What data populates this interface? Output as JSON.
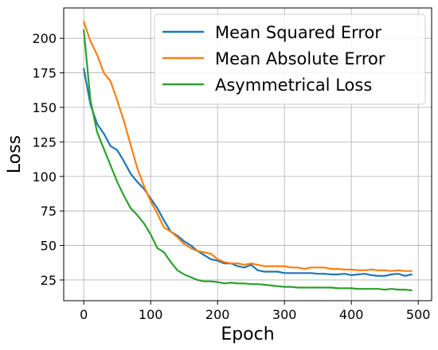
{
  "chart_data": {
    "type": "line",
    "title": "",
    "xlabel": "Epoch",
    "ylabel": "Loss",
    "xlim": [
      -30,
      520
    ],
    "ylim": [
      10,
      222
    ],
    "xticks": [
      0,
      100,
      200,
      300,
      400,
      500
    ],
    "yticks": [
      25,
      50,
      75,
      100,
      125,
      150,
      175,
      200
    ],
    "grid": true,
    "legend_position": "top-right",
    "x": [
      0,
      10,
      20,
      30,
      40,
      50,
      60,
      70,
      80,
      90,
      100,
      110,
      120,
      130,
      140,
      150,
      160,
      170,
      180,
      190,
      200,
      210,
      220,
      230,
      240,
      250,
      260,
      270,
      280,
      290,
      300,
      310,
      320,
      330,
      340,
      350,
      360,
      370,
      380,
      390,
      400,
      410,
      420,
      430,
      440,
      450,
      460,
      470,
      480,
      490
    ],
    "series": [
      {
        "name": "Mean Squared Error",
        "color": "#1f77b4",
        "values": [
          178,
          152,
          138,
          131,
          122,
          119,
          111,
          102,
          96,
          91,
          84,
          77,
          68,
          60,
          57,
          53,
          50,
          46,
          43,
          40,
          39,
          37,
          37,
          35,
          34,
          36,
          32,
          31,
          31,
          31,
          30,
          30,
          30,
          30,
          30,
          29.5,
          29.5,
          29,
          29,
          29.5,
          28.5,
          29,
          29.5,
          28.5,
          28,
          28,
          29,
          29.5,
          28,
          29
        ]
      },
      {
        "name": "Mean Absolute Error",
        "color": "#ff7f0e",
        "values": [
          212,
          198,
          188,
          175,
          169,
          155,
          140,
          123,
          106,
          93,
          82,
          73,
          63,
          60,
          56,
          51,
          48,
          46,
          45,
          44,
          40,
          38,
          37,
          37,
          36,
          37,
          36,
          35,
          35,
          35,
          35,
          34,
          34,
          33,
          34,
          34,
          34,
          33,
          33,
          32.5,
          32.5,
          32,
          32,
          32.5,
          32,
          32,
          31.5,
          32,
          31.5,
          31.5
        ]
      },
      {
        "name": "Asymmetrical Loss",
        "color": "#2ca02c",
        "values": [
          206,
          155,
          132,
          120,
          108,
          96,
          86,
          77,
          72,
          66,
          58,
          48,
          45,
          38,
          32,
          29,
          27,
          25,
          24,
          24,
          23.5,
          22.5,
          23,
          22.5,
          22.5,
          22,
          22,
          21.5,
          21,
          20.5,
          20,
          20,
          19.5,
          19.5,
          19.5,
          19.5,
          19.5,
          19.5,
          19,
          19,
          19,
          18.5,
          18.5,
          18.5,
          18.5,
          18,
          18.5,
          18,
          18,
          17.5
        ]
      }
    ]
  }
}
